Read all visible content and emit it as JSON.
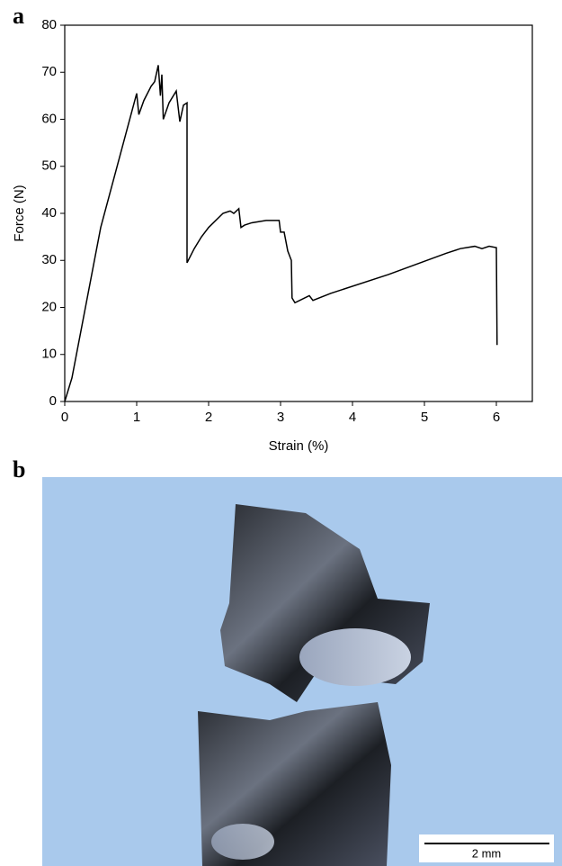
{
  "chart_data": {
    "type": "line",
    "panel_label": "a",
    "x_label": "Strain (%)",
    "y_label": "Force (N)",
    "x": [
      0,
      0.1,
      0.5,
      1.0,
      1.03,
      1.1,
      1.2,
      1.25,
      1.3,
      1.33,
      1.35,
      1.37,
      1.45,
      1.55,
      1.6,
      1.65,
      1.7,
      1.7,
      1.8,
      1.9,
      2.0,
      2.2,
      2.3,
      2.35,
      2.42,
      2.45,
      2.5,
      2.6,
      2.8,
      2.98,
      3.0,
      3.05,
      3.1,
      3.15,
      3.16,
      3.2,
      3.4,
      3.45,
      3.7,
      4.5,
      5.3,
      5.5,
      5.7,
      5.8,
      5.9,
      6.0,
      6.01
    ],
    "values": [
      0,
      5,
      37,
      65.5,
      61,
      64,
      67,
      68,
      71.5,
      65,
      69.5,
      60,
      63.5,
      66,
      59.5,
      63,
      63.5,
      29.5,
      32.5,
      35,
      37,
      40,
      40.5,
      40,
      41,
      37,
      37.5,
      38,
      38.5,
      38.5,
      36,
      36,
      32,
      30,
      22,
      21,
      22.5,
      21.5,
      23,
      27,
      31.5,
      32.5,
      33,
      32.5,
      33,
      32.7,
      12
    ],
    "color": "#000000",
    "xlim": [
      0,
      6.5
    ],
    "xticks": [
      0,
      1,
      2,
      3,
      4,
      5,
      6
    ],
    "ylim": [
      0,
      80
    ],
    "yticks": [
      0,
      10,
      20,
      30,
      40,
      50,
      60,
      70,
      80
    ]
  },
  "photo": {
    "panel_label": "b",
    "scale_bar": "2 mm"
  }
}
